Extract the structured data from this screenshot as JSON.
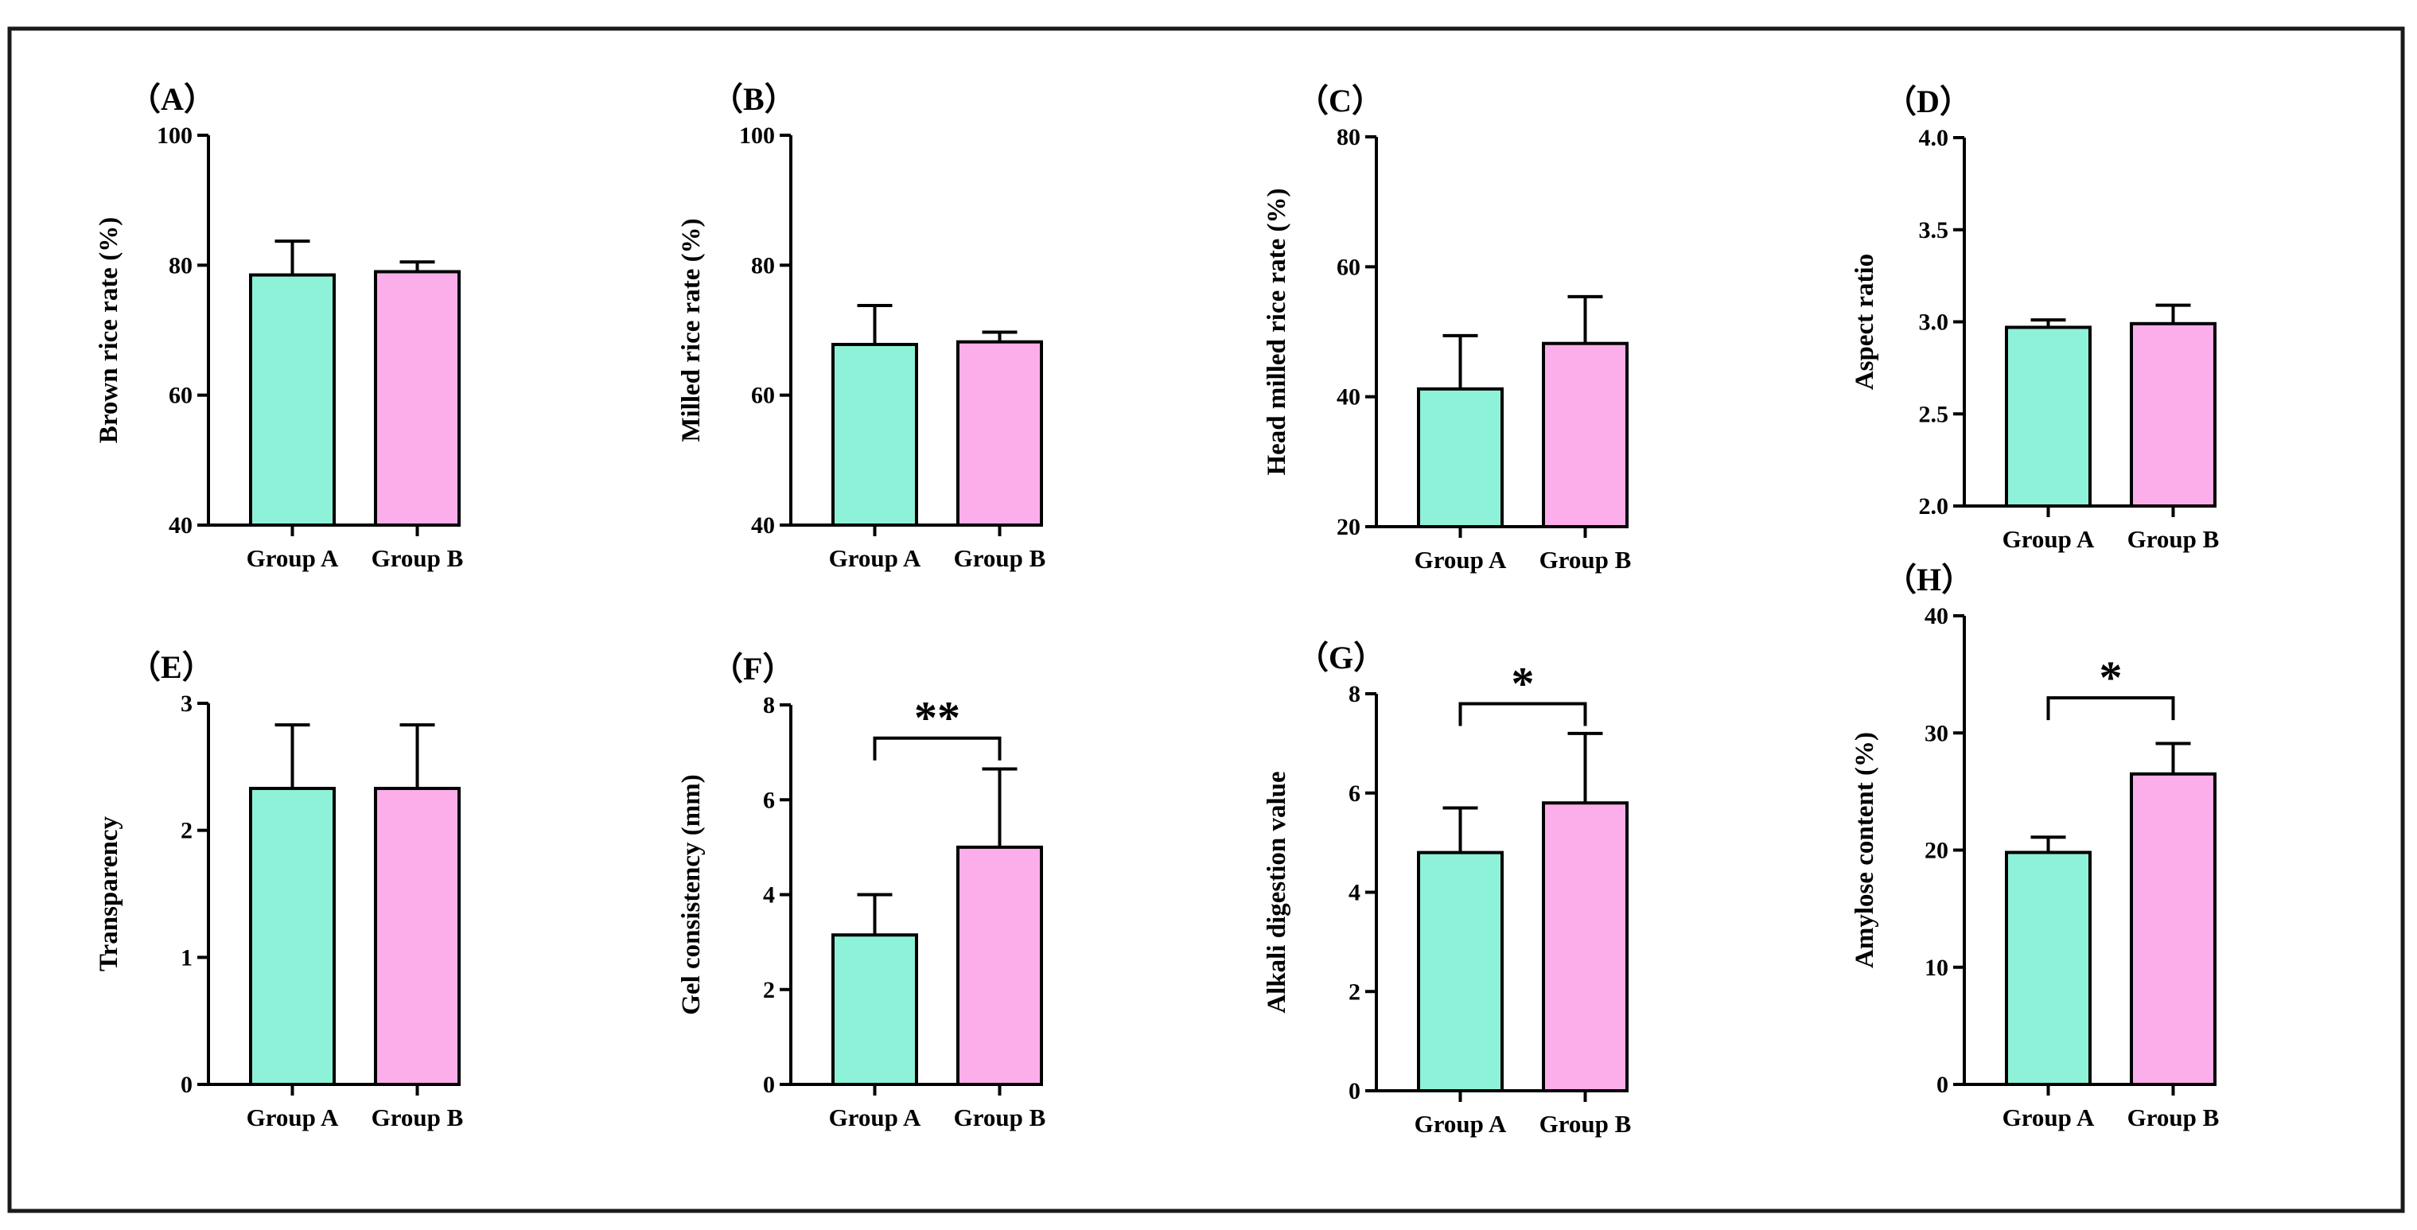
{
  "colors": {
    "group_a": "#8ef2d8",
    "group_b": "#fcaeea",
    "ink": "#000000",
    "frame": "#1a1a1a"
  },
  "chart_data": [
    {
      "id": "A",
      "panel_label": "（A）",
      "type": "bar",
      "ylabel": "Brown rice rate (%)",
      "categories": [
        "Group A",
        "Group B"
      ],
      "values": [
        78.5,
        79.0
      ],
      "errors": [
        5.2,
        1.5
      ],
      "ylim": [
        40,
        100
      ],
      "yticks": [
        "40",
        "60",
        "80",
        "100"
      ],
      "significance": null
    },
    {
      "id": "B",
      "panel_label": "（B）",
      "type": "bar",
      "ylabel": "Milled rice rate (%)",
      "categories": [
        "Group A",
        "Group B"
      ],
      "values": [
        67.8,
        68.2
      ],
      "errors": [
        6.0,
        1.5
      ],
      "ylim": [
        40,
        100
      ],
      "yticks": [
        "40",
        "60",
        "80",
        "100"
      ],
      "significance": null
    },
    {
      "id": "C",
      "panel_label": "（C）",
      "type": "bar",
      "ylabel": "Head milled rice rate (%)",
      "categories": [
        "Group A",
        "Group B"
      ],
      "values": [
        41.2,
        48.2
      ],
      "errors": [
        8.2,
        7.2
      ],
      "ylim": [
        20,
        80
      ],
      "yticks": [
        "20",
        "40",
        "60",
        "80"
      ],
      "significance": null
    },
    {
      "id": "D",
      "panel_label": "（D）",
      "type": "bar",
      "ylabel": "Aspect ratio",
      "categories": [
        "Group A",
        "Group B"
      ],
      "values": [
        2.97,
        2.99
      ],
      "errors": [
        0.04,
        0.1
      ],
      "ylim": [
        2.0,
        4.0
      ],
      "yticks": [
        "2.0",
        "2.5",
        "3.0",
        "3.5",
        "4.0"
      ],
      "significance": null
    },
    {
      "id": "E",
      "panel_label": "（E）",
      "type": "bar",
      "ylabel": "Transparency",
      "categories": [
        "Group A",
        "Group B"
      ],
      "values": [
        2.33,
        2.33
      ],
      "errors": [
        0.5,
        0.5
      ],
      "ylim": [
        0,
        3
      ],
      "yticks": [
        "0",
        "1",
        "2",
        "3"
      ],
      "significance": null
    },
    {
      "id": "F",
      "panel_label": "（F）",
      "type": "bar",
      "ylabel": "Gel consistency (mm)",
      "categories": [
        "Group A",
        "Group B"
      ],
      "values": [
        3.15,
        5.0
      ],
      "errors": [
        0.85,
        1.65
      ],
      "ylim": [
        0,
        8
      ],
      "yticks": [
        "0",
        "2",
        "4",
        "6",
        "8"
      ],
      "significance": {
        "label": "**",
        "y": 7.3
      }
    },
    {
      "id": "G",
      "panel_label": "（G）",
      "type": "bar",
      "ylabel": "Alkali digestion value",
      "categories": [
        "Group A",
        "Group B"
      ],
      "values": [
        4.8,
        5.8
      ],
      "errors": [
        0.9,
        1.4
      ],
      "ylim": [
        0,
        8
      ],
      "yticks": [
        "0",
        "2",
        "4",
        "6",
        "8"
      ],
      "significance": {
        "label": "*",
        "y": 7.8
      }
    },
    {
      "id": "H",
      "panel_label": "（H）",
      "type": "bar",
      "ylabel": "Amylose content (%)",
      "categories": [
        "Group A",
        "Group B"
      ],
      "values": [
        19.8,
        26.5
      ],
      "errors": [
        1.3,
        2.6
      ],
      "ylim": [
        0,
        40
      ],
      "yticks": [
        "0",
        "10",
        "20",
        "30",
        "40"
      ],
      "significance": {
        "label": "*",
        "y": 33
      }
    }
  ]
}
